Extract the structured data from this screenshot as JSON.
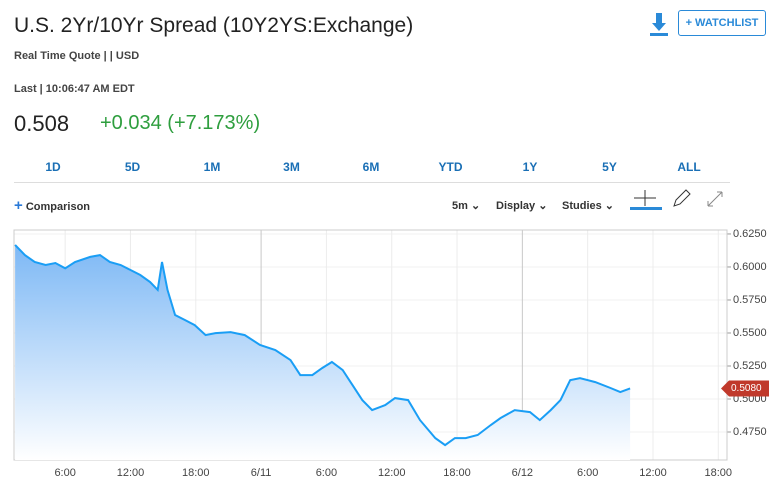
{
  "header": {
    "title": "U.S. 2Yr/10Yr Spread (10Y2YS:Exchange)",
    "subtitle": "Real Time Quote | | USD",
    "watchlist": "+ WATCHLIST"
  },
  "quote": {
    "last_label": "Last | 10:06:47 AM EDT",
    "price": "0.508",
    "change": "+0.034 (+7.173%)"
  },
  "ranges": [
    "1D",
    "5D",
    "1M",
    "3M",
    "6M",
    "YTD",
    "1Y",
    "5Y",
    "ALL"
  ],
  "toolbar": {
    "comparison": "Comparison",
    "interval": "5m",
    "display": "Display",
    "studies": "Studies"
  },
  "chart_data": {
    "type": "area",
    "color": "#1a9ef5",
    "x": [
      1.4,
      2.3,
      3.2,
      4.2,
      5.1,
      6.0,
      6.9,
      8.3,
      9.2,
      10.1,
      11.1,
      12.0,
      12.9,
      13.8,
      14.5,
      14.9,
      15.4,
      16.1,
      17.0,
      17.9,
      18.9,
      19.8,
      21.2,
      22.5,
      23.9,
      25.3,
      26.7,
      27.6,
      28.7,
      29.6,
      30.5,
      31.5,
      32.4,
      33.3,
      34.2,
      35.4,
      36.3,
      37.5,
      38.6,
      40.0,
      40.9,
      41.8,
      42.8,
      43.9,
      45.1,
      46.0,
      47.3,
      48.7,
      49.6,
      50.6,
      51.5,
      52.4,
      53.3,
      54.7,
      56.1,
      57.0,
      57.9
    ],
    "values": [
      0.6167,
      0.609,
      0.6038,
      0.6015,
      0.603,
      0.599,
      0.6038,
      0.6076,
      0.609,
      0.6038,
      0.6015,
      0.5977,
      0.5939,
      0.5886,
      0.5826,
      0.6038,
      0.5826,
      0.5636,
      0.5598,
      0.556,
      0.5484,
      0.5499,
      0.5507,
      0.5484,
      0.5409,
      0.5371,
      0.5295,
      0.5181,
      0.5181,
      0.5234,
      0.528,
      0.5219,
      0.5105,
      0.4992,
      0.4916,
      0.4954,
      0.5007,
      0.4992,
      0.484,
      0.4704,
      0.4651,
      0.4704,
      0.4704,
      0.4727,
      0.4803,
      0.4856,
      0.4916,
      0.4901,
      0.484,
      0.4916,
      0.4992,
      0.5143,
      0.5158,
      0.5128,
      0.5083,
      0.5052,
      0.508
    ],
    "xlim": [
      1.3,
      66.8
    ],
    "xticks": [
      {
        "value": 6,
        "label": "6:00"
      },
      {
        "value": 12,
        "label": "12:00"
      },
      {
        "value": 18,
        "label": "18:00"
      },
      {
        "value": 24,
        "label": "6/11"
      },
      {
        "value": 30,
        "label": "6:00"
      },
      {
        "value": 36,
        "label": "12:00"
      },
      {
        "value": 42,
        "label": "18:00"
      },
      {
        "value": 48,
        "label": "6/12"
      },
      {
        "value": 54,
        "label": "6:00"
      },
      {
        "value": 60,
        "label": "12:00"
      },
      {
        "value": 66,
        "label": "18:00"
      }
    ],
    "ylim": [
      0.4538,
      0.628
    ],
    "yticks": [
      {
        "value": 0.475,
        "label": "0.4750"
      },
      {
        "value": 0.5,
        "label": "0.5000"
      },
      {
        "value": 0.525,
        "label": "0.5250"
      },
      {
        "value": 0.55,
        "label": "0.5500"
      },
      {
        "value": 0.575,
        "label": "0.5750"
      },
      {
        "value": 0.6,
        "label": "0.6000"
      },
      {
        "value": 0.625,
        "label": "0.6250"
      }
    ],
    "price_tag": {
      "value": 0.508,
      "label": "0.5080"
    },
    "grid": true
  }
}
